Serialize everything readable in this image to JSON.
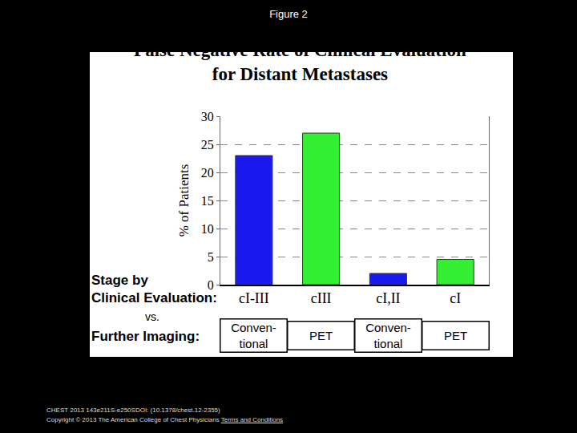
{
  "header": "Figure 2",
  "chart_data": {
    "type": "bar",
    "title": "False Negative Rate of Clinical Evaluation\nfor Distant Metastases",
    "y_label": "% of Patients",
    "categories": [
      "cI-III",
      "cIII",
      "cI,II",
      "cI"
    ],
    "values": [
      23,
      27,
      2,
      4.5
    ],
    "colors": [
      "#1a1aee",
      "#33ee33",
      "#1a1aee",
      "#33ee33"
    ],
    "ylim": [
      0,
      30
    ],
    "yticks": [
      0,
      5,
      10,
      15,
      20,
      25,
      30
    ],
    "grid": true,
    "imaging": [
      "Conven-\ntional",
      "PET",
      "Conven-\ntional",
      "PET"
    ],
    "annotations": [
      "Stage by\nClinical Evaluation:",
      "vs.",
      "Further Imaging:"
    ]
  },
  "footer": {
    "citation": "CHEST 2013 143e211S-e250SDOI: (10.1378/chest.12-2355)",
    "copyright": "Copyright © 2013 The American College of Chest Physicians",
    "link": "Terms and Conditions"
  }
}
